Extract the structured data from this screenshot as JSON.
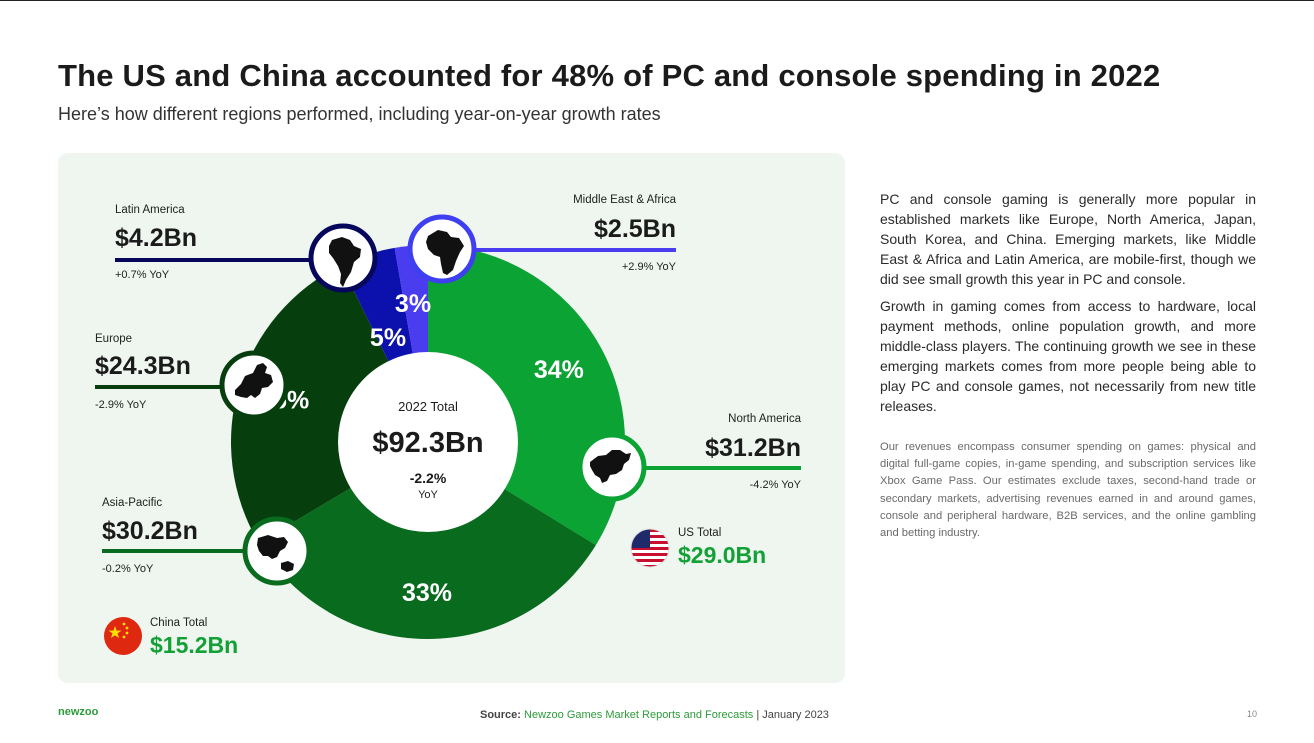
{
  "title": "The US and China accounted for 48% of PC and console spending in 2022",
  "subtitle": "Here’s how different regions performed, including year-on-year growth rates",
  "paragraphs": [
    "PC and console gaming is generally more popular in established markets like Europe, North America, Japan, South Korea, and China. Emerging markets, like Middle East & Africa and Latin America, are mobile-first, though we did see small growth this year in PC and console.",
    "Growth in gaming comes from access to hardware, local payment methods, online population growth, and more middle-class players. The continuing growth we see in these emerging markets comes from more people being able to play PC and console games, not necessarily from new title releases."
  ],
  "note": "Our revenues encompass consumer spending on games: physical and digital full-game copies, in-game spending, and subscription services like Xbox Game Pass. Our estimates exclude taxes, second-hand trade or secondary markets, advertising revenues earned in and around games, console and peripheral hardware, B2B services, and the online gambling and betting industry.",
  "footer": {
    "logo": "newzoo",
    "source_label": "Source:",
    "source_text": "Newzoo Games Market Reports and Forecasts",
    "date": " | January 2023",
    "page": "10"
  },
  "colors": {
    "north_america": "#0aa334",
    "asia_pacific": "#086b1e",
    "europe": "#063e0e",
    "latin_america": "#0c11ad",
    "middle_east_africa": "#4a3df0",
    "panel": "#eef6ef"
  },
  "icons": {
    "latin_america": "south-america-map-icon",
    "middle_east_africa": "africa-map-icon",
    "europe": "europe-map-icon",
    "north_america": "north-america-map-icon",
    "asia_pacific": "asia-pacific-map-icon",
    "us": "us-flag-icon",
    "china": "china-flag-icon"
  },
  "chart_data": {
    "type": "pie",
    "center": {
      "label": "2022 Total",
      "value": "$92.3Bn",
      "growth": "-2.2%",
      "growth_unit": "YoY"
    },
    "categories": [
      "North America",
      "Asia-Pacific",
      "Europe",
      "Latin America",
      "Middle East & Africa"
    ],
    "values": [
      31.2,
      30.2,
      24.3,
      4.2,
      2.5
    ],
    "percent_labels": [
      "34%",
      "33%",
      "26%",
      "5%",
      "3%"
    ],
    "value_labels": [
      "$31.2Bn",
      "$30.2Bn",
      "$24.3Bn",
      "$4.2Bn",
      "$2.5Bn"
    ],
    "yoy_labels": [
      "-4.2% YoY",
      "-0.2% YoY",
      "-2.9% YoY",
      "+0.7% YoY",
      "+2.9% YoY"
    ],
    "callouts": [
      {
        "label": "US Total",
        "value": "$29.0Bn"
      },
      {
        "label": "China Total",
        "value": "$15.2Bn"
      }
    ]
  }
}
